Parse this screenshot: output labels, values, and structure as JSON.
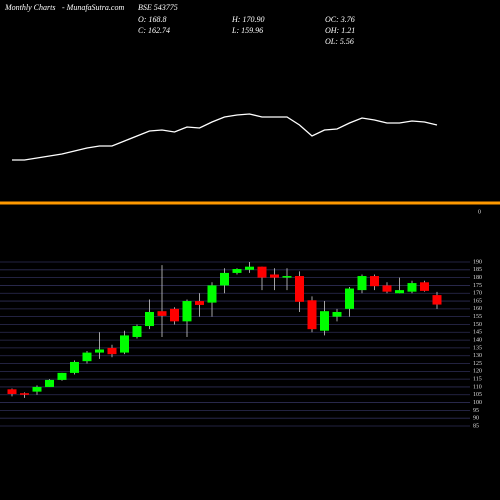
{
  "chart_data": {
    "type": "candlestick",
    "title": "Monthly Charts",
    "source": "- MunafaSutra.com",
    "symbol": "BSE 543775",
    "stats": [
      "O: 168.8",
      "C: 162.74",
      "H: 170.90",
      "L: 159.96",
      "OC: 3.76",
      "OH: 1.21",
      "OL: 5.56"
    ],
    "up_color": "#00ff00",
    "down_color": "#ff0000",
    "wick_color": "#cccccc",
    "grid": true,
    "ylim": [
      82,
      193
    ],
    "yticks": [
      85,
      90,
      95,
      100,
      105,
      110,
      115,
      120,
      125,
      130,
      135,
      140,
      145,
      150,
      155,
      160,
      165,
      170,
      175,
      180,
      185,
      190
    ],
    "open": [
      108.5,
      106,
      107,
      110,
      114.5,
      119,
      126.5,
      132,
      135,
      132,
      142,
      149,
      158.5,
      160,
      152,
      165,
      164,
      175,
      183,
      185,
      187,
      182,
      180,
      181,
      165.5,
      146,
      155,
      160,
      172,
      181,
      175,
      170,
      171,
      177,
      168.8
    ],
    "high": [
      109,
      106.5,
      111,
      115,
      119,
      127,
      133,
      145,
      137,
      146,
      150,
      166,
      188,
      161,
      166,
      170,
      177,
      186,
      186,
      190,
      187,
      186,
      186,
      184,
      168,
      165,
      160,
      174,
      182,
      182,
      177,
      180,
      178,
      178,
      170.9
    ],
    "low": [
      104,
      103,
      105,
      110,
      114,
      118,
      125,
      128,
      129,
      131,
      141,
      147,
      142,
      150,
      142,
      155,
      155,
      170,
      182,
      183,
      172,
      172,
      172,
      158,
      145,
      143,
      152,
      155,
      170,
      172,
      170,
      170,
      170,
      171,
      159.96
    ],
    "close": [
      105.5,
      105,
      110,
      114.5,
      119,
      126,
      132,
      134,
      131,
      143,
      149,
      158,
      155.5,
      152,
      165,
      162.5,
      175,
      183,
      185.5,
      187,
      180,
      180,
      181,
      164.5,
      147,
      158.5,
      158,
      173,
      181,
      174.5,
      171,
      172,
      176.5,
      171.5,
      162.74
    ],
    "indicator": {
      "color": "#ffffff",
      "ylim": [
        30,
        90
      ],
      "values": [
        40,
        40,
        42,
        44,
        46,
        49,
        52,
        54,
        54,
        59,
        64,
        69,
        70,
        68,
        73,
        72,
        78,
        83,
        85,
        86,
        83,
        83,
        83,
        75,
        64,
        70,
        71,
        77,
        82,
        80,
        77,
        77,
        79,
        78,
        75
      ]
    },
    "separator_color": "#ff9900",
    "lower_yticks": [
      0
    ]
  }
}
